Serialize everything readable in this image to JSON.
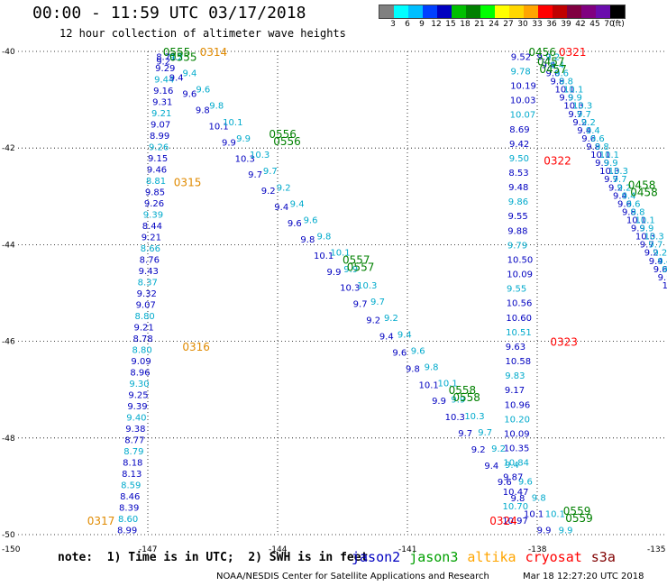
{
  "title": "00:00 - 11:59 UTC 03/17/2018",
  "subtitle": "12 hour collection of altimeter wave heights",
  "colorbar": {
    "colors": [
      "#808080",
      "#00ffff",
      "#00bfff",
      "#0040ff",
      "#0000c0",
      "#00c000",
      "#008000",
      "#00ff00",
      "#ffff00",
      "#ffd700",
      "#ffa500",
      "#ff0000",
      "#c00000",
      "#800040",
      "#800080",
      "#6a0dad",
      "#000000"
    ],
    "ticks": [
      "3",
      "6",
      "9",
      "12",
      "15",
      "18",
      "21",
      "24",
      "27",
      "30",
      "33",
      "36",
      "39",
      "42",
      "45",
      "70",
      "(ft)"
    ]
  },
  "axes": {
    "x_ticks": [
      "-150",
      "-147",
      "-144",
      "-141",
      "-138",
      "-135"
    ],
    "y_ticks": [
      "-40",
      "-42",
      "-44",
      "-46",
      "-48",
      "-50"
    ]
  },
  "map_view": {
    "lon_range": [
      -150,
      -135
    ],
    "lat_range": [
      -50,
      -40
    ]
  },
  "passes": [
    {
      "name": "altika-west",
      "color": "#00aacc",
      "label_color": "#0000c0",
      "start": [
        -147.5,
        -49.9
      ],
      "end": [
        -146.6,
        -40.1
      ],
      "values": [
        "8.99",
        "8.60",
        "8.39",
        "8.46",
        "8.59",
        "8.13",
        "8.18",
        "8.79",
        "8.77",
        "9.38",
        "9.40",
        "9.39",
        "9.25",
        "9.30",
        "8.96",
        "9.09",
        "8.80",
        "8.78",
        "9.21",
        "8.80",
        "9.07",
        "9.32",
        "8.37",
        "9.43",
        "8.76",
        "8.66",
        "9.21",
        "8.44",
        "9.39",
        "9.26",
        "9.85",
        "8.81",
        "9.46",
        "9.15",
        "9.26",
        "8.99",
        "9.07",
        "9.21",
        "9.31",
        "9.16",
        "9.44",
        "9.29",
        "8.71"
      ]
    },
    {
      "name": "jason-diag-1",
      "color": "#0000c0",
      "start": [
        -146.6,
        -40.2
      ],
      "end": [
        -137.8,
        -49.9
      ]
    },
    {
      "name": "jason-diag-2",
      "color": "#00aacc",
      "start": [
        -146.3,
        -40.1
      ],
      "end": [
        -137.3,
        -49.9
      ]
    },
    {
      "name": "mid-track-a",
      "color": "#0000c0",
      "start": [
        -138.4,
        -40.1
      ],
      "end": [
        -138.6,
        -49.7
      ],
      "values": [
        "9.52",
        "9.78",
        "10.19",
        "10.03",
        "10.07",
        "8.69",
        "9.42",
        "9.50",
        "8.53",
        "9.48",
        "9.86",
        "9.55",
        "9.88",
        "9.79",
        "10.50",
        "10.09",
        "9.55",
        "10.56",
        "10.60",
        "10.51",
        "9.63",
        "10.58",
        "9.83",
        "9.17",
        "10.96",
        "10.20",
        "10.09",
        "10.35",
        "10.84",
        "9.87",
        "10.47",
        "10.70",
        "10.97"
      ]
    },
    {
      "name": "east-track-a",
      "color": "#0000c0",
      "start": [
        -137.8,
        -40.1
      ],
      "end": [
        -134.8,
        -45.0
      ]
    },
    {
      "name": "east-track-b",
      "color": "#00aacc",
      "start": [
        -137.6,
        -40.1
      ],
      "end": [
        -134.6,
        -45.0
      ]
    }
  ],
  "time_labels": [
    {
      "text": "0555",
      "color": "#008000",
      "lon": -146.65,
      "lat": -40.0
    },
    {
      "text": "0555",
      "color": "#008000",
      "lon": -146.5,
      "lat": -40.1
    },
    {
      "text": "0314",
      "color": "#e08a00",
      "lon": -145.8,
      "lat": -40.0
    },
    {
      "text": "0556",
      "color": "#008000",
      "lon": -144.2,
      "lat": -41.7
    },
    {
      "text": "0556",
      "color": "#008000",
      "lon": -144.1,
      "lat": -41.85
    },
    {
      "text": "0315",
      "color": "#e08a00",
      "lon": -146.4,
      "lat": -42.7
    },
    {
      "text": "0557",
      "color": "#008000",
      "lon": -142.5,
      "lat": -44.3
    },
    {
      "text": "0557",
      "color": "#008000",
      "lon": -142.4,
      "lat": -44.45
    },
    {
      "text": "0316",
      "color": "#e08a00",
      "lon": -146.2,
      "lat": -46.1
    },
    {
      "text": "0558",
      "color": "#008000",
      "lon": -140.05,
      "lat": -47.0
    },
    {
      "text": "0558",
      "color": "#008000",
      "lon": -139.95,
      "lat": -47.15
    },
    {
      "text": "0317",
      "color": "#e08a00",
      "lon": -148.4,
      "lat": -49.7
    },
    {
      "text": "0321",
      "color": "#ff0000",
      "lon": -137.5,
      "lat": -40.0
    },
    {
      "text": "0322",
      "color": "#ff0000",
      "lon": -137.85,
      "lat": -42.25
    },
    {
      "text": "0323",
      "color": "#ff0000",
      "lon": -137.7,
      "lat": -46.0
    },
    {
      "text": "0324",
      "color": "#ff0000",
      "lon": -139.1,
      "lat": -49.7
    },
    {
      "text": "0456",
      "color": "#008000",
      "lon": -138.2,
      "lat": -40.0
    },
    {
      "text": "0457",
      "color": "#008000",
      "lon": -138.0,
      "lat": -40.2
    },
    {
      "text": "0457",
      "color": "#008000",
      "lon": -137.95,
      "lat": -40.35
    },
    {
      "text": "0458",
      "color": "#008000",
      "lon": -135.9,
      "lat": -42.75
    },
    {
      "text": "0458",
      "color": "#008000",
      "lon": -135.85,
      "lat": -42.9
    },
    {
      "text": "0559",
      "color": "#008000",
      "lon": -137.4,
      "lat": -49.5
    },
    {
      "text": "0559",
      "color": "#008000",
      "lon": -137.35,
      "lat": -49.65
    }
  ],
  "note": "note:  1) Time is in UTC;  2) SWH is in feet",
  "missions": [
    {
      "name": "jason2",
      "color": "#0000c0"
    },
    {
      "name": "jason3",
      "color": "#00a000"
    },
    {
      "name": "altika",
      "color": "#ffa500"
    },
    {
      "name": "cryosat",
      "color": "#ff0000"
    },
    {
      "name": "s3a",
      "color": "#800000"
    }
  ],
  "credit": "NOAA/NESDIS Center for Satellite Applications and Research",
  "timestamp": "Mar 18 12:27:20 UTC 2018"
}
